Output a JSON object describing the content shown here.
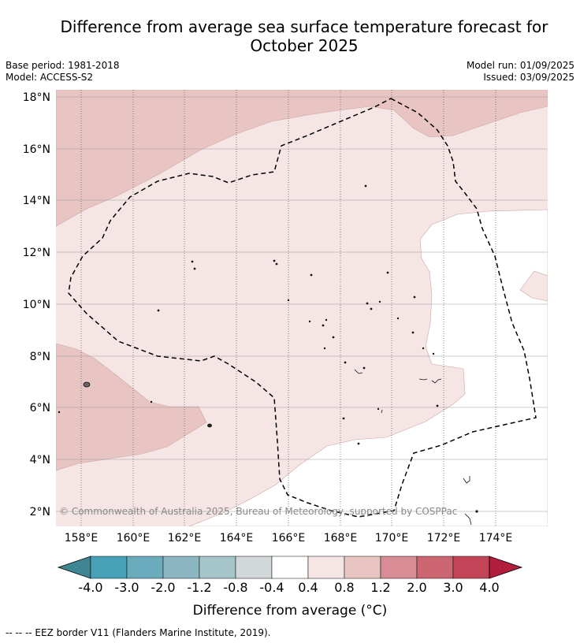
{
  "title_line1": "Difference from average sea surface temperature forecast for",
  "title_line2": "October 2025",
  "meta": {
    "base_period": "Base period: 1981-2018",
    "model": "Model: ACCESS-S2",
    "model_run": "Model run: 01/09/2025",
    "issued": "Issued: 03/09/2025"
  },
  "copyright": "© Commonwealth of Australia 2025, Bureau of Meteorology, supported by COSPPac",
  "lat_labels": [
    "18°N",
    "16°N",
    "14°N",
    "12°N",
    "10°N",
    "8°N",
    "6°N",
    "4°N",
    "2°N"
  ],
  "lon_labels": [
    "158°E",
    "160°E",
    "162°E",
    "164°E",
    "166°E",
    "168°E",
    "170°E",
    "172°E",
    "174°E"
  ],
  "colorbar": {
    "title": "Difference from average (°C)",
    "tick_labels": [
      "-4.0",
      "-3.0",
      "-2.0",
      "-1.2",
      "-0.8",
      "-0.4",
      "0.4",
      "0.8",
      "1.2",
      "2.0",
      "3.0",
      "4.0"
    ],
    "colors": [
      "#3f8594",
      "#47a0b5",
      "#6aacbd",
      "#8bb6c1",
      "#a6c5ca",
      "#d2d8da",
      "#ffffff",
      "#f5e6e5",
      "#e8c5c2",
      "#d88d95",
      "#cc6671",
      "#c24456",
      "#b21f3d"
    ]
  },
  "legend_note": "--  --  -- EEZ border V11 (Flanders Marine Institute, 2019).",
  "region_colors": {
    "anomaly_0_4_to_0_8": "#f5e6e5",
    "anomaly_0_8_to_1_2": "#e8c5c2",
    "anomaly_neg0_4_to_0_4": "#ffffff"
  }
}
